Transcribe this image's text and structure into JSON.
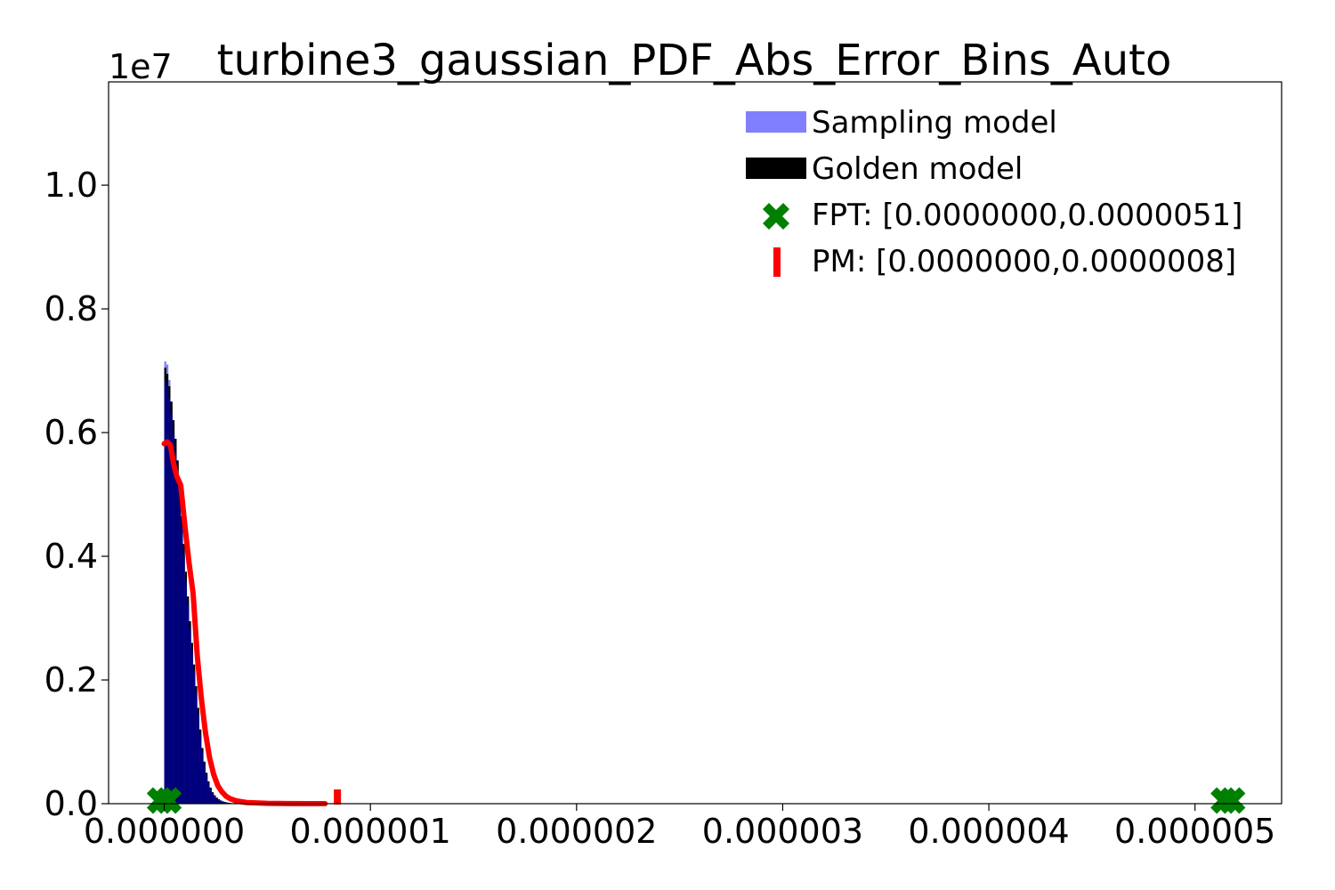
{
  "chart_data": {
    "type": "bar",
    "title": "turbine3_gaussian_PDF_Abs_Error_Bins_Auto",
    "xlabel": "",
    "ylabel": "",
    "y_offset_text": "1e7",
    "xlim": [
      -2.7e-07,
      5.42e-06
    ],
    "ylim": [
      0,
      11670000
    ],
    "x_ticks": [
      0,
      1e-06,
      2e-06,
      3e-06,
      4e-06,
      5e-06
    ],
    "x_tick_labels": [
      "0.000000",
      "0.000001",
      "0.000002",
      "0.000003",
      "0.000004",
      "0.000005"
    ],
    "y_ticks": [
      0,
      2000000,
      4000000,
      6000000,
      8000000,
      10000000
    ],
    "y_tick_labels": [
      "0.0",
      "0.2",
      "0.4",
      "0.6",
      "0.8",
      "1.0"
    ],
    "grid": false,
    "legend_position": "top-right",
    "legend": [
      "Sampling model",
      "Golden model",
      "FPT: [0.0000000,0.0000051]",
      "PM: [0.0000000,0.0000008]"
    ],
    "colors": {
      "sampling": "#8080ff",
      "golden": "#000000",
      "overlap": "#000080",
      "pm_curve": "#ff0000",
      "fpt_marker": "#008000"
    },
    "histogram": {
      "x": [
        5e-09,
        1.5e-08,
        2.5e-08,
        3.5e-08,
        4.5e-08,
        5.5e-08,
        6.5e-08,
        7.5e-08,
        8.5e-08,
        9.5e-08,
        1.05e-07,
        1.15e-07,
        1.25e-07,
        1.35e-07,
        1.45e-07,
        1.55e-07,
        1.65e-07,
        1.75e-07,
        1.85e-07,
        1.95e-07,
        2.05e-07,
        2.15e-07,
        2.25e-07,
        2.35e-07,
        2.45e-07,
        2.55e-07,
        2.65e-07,
        2.75e-07,
        2.85e-07,
        2.95e-07,
        3.05e-07,
        3.15e-07,
        3.25e-07,
        3.35e-07,
        3.45e-07,
        3.6e-07,
        3.8e-07
      ],
      "sampling": [
        7150000,
        7100000,
        6850000,
        6500000,
        6150000,
        5850000,
        5500000,
        5050000,
        4600000,
        4150000,
        3700000,
        3300000,
        2900000,
        2550000,
        2200000,
        1850000,
        1500000,
        1150000,
        880000,
        660000,
        480000,
        350000,
        250000,
        180000,
        130000,
        95000,
        70000,
        50000,
        36000,
        26000,
        18000,
        12000,
        8000,
        5000,
        3000,
        1500,
        500
      ],
      "golden": [
        7050000,
        6950000,
        6750000,
        6500000,
        6200000,
        5900000,
        5550000,
        5100000,
        4650000,
        4200000,
        3750000,
        3350000,
        2950000,
        2600000,
        2250000,
        1900000,
        1550000,
        1200000,
        900000,
        680000,
        500000,
        360000,
        260000,
        185000,
        135000,
        98000,
        72000,
        52000,
        37000,
        27000,
        19000,
        13000,
        8500,
        5200,
        3200,
        1600,
        500
      ]
    },
    "pm_curve": {
      "x": [
        0.0,
        1.5e-08,
        3e-08,
        4.5e-08,
        6e-08,
        8e-08,
        1e-07,
        1.2e-07,
        1.4e-07,
        1.6e-07,
        1.8e-07,
        2e-07,
        2.2e-07,
        2.4e-07,
        2.6e-07,
        2.8e-07,
        3e-07,
        3.2e-07,
        3.5e-07,
        4e-07,
        5e-07,
        6e-07,
        7e-07,
        7.8e-07
      ],
      "y": [
        5820000,
        5850000,
        5800000,
        5500000,
        5300000,
        5150000,
        4500000,
        3900000,
        3400000,
        2400000,
        1700000,
        1150000,
        740000,
        470000,
        290000,
        190000,
        120000,
        80000,
        45000,
        18000,
        6000,
        2000,
        500,
        0
      ]
    },
    "pm_markers": {
      "x": [
        0.0,
        8.4e-07
      ],
      "y": [
        0,
        0
      ]
    },
    "fpt_markers": {
      "x": [
        -2e-08,
        2e-08,
        5.14e-06,
        5.18e-06
      ],
      "y": [
        80000,
        80000,
        80000,
        80000
      ]
    }
  }
}
